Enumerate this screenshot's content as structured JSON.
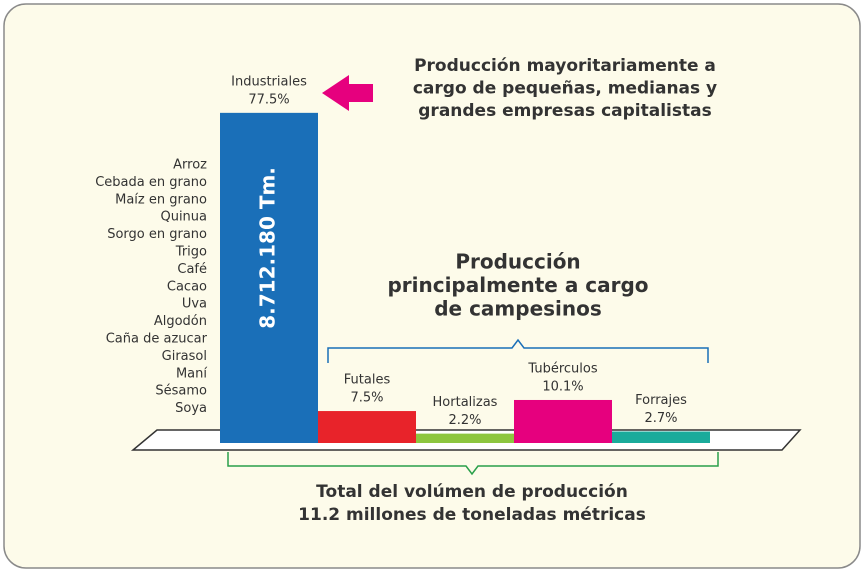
{
  "chart_data": {
    "type": "bar",
    "categories": [
      "Industriales",
      "Futales",
      "Hortalizas",
      "Tubérculos",
      "Forrajes"
    ],
    "values": [
      77.5,
      7.5,
      2.2,
      10.1,
      2.7
    ],
    "value_labels": [
      "77.5%",
      "7.5%",
      "2.2%",
      "10.1%",
      "2.7%"
    ],
    "colors": [
      "#1a6fb8",
      "#e8232a",
      "#8dc63f",
      "#e6007e",
      "#1aab9b"
    ],
    "bar_annotation": "8.712.180 Tm.",
    "crops": [
      "Arroz",
      "Cebada en grano",
      "Maíz en grano",
      "Quinua",
      "Sorgo en grano",
      "Trigo",
      "Café",
      "Cacao",
      "Uva",
      "Algodón",
      "Caña de azucar",
      "Girasol",
      "Maní",
      "Sésamo",
      "Soya"
    ],
    "industrial_note": [
      "Producción mayoritariamente a",
      "cargo de pequeñas, medianas y",
      "grandes empresas capitalistas"
    ],
    "peasant_note": [
      "Producción",
      "principalmente a cargo",
      "de campesinos"
    ],
    "total_note": [
      "Total del volúmen de producción",
      "11.2 millones de toneladas métricas"
    ]
  }
}
